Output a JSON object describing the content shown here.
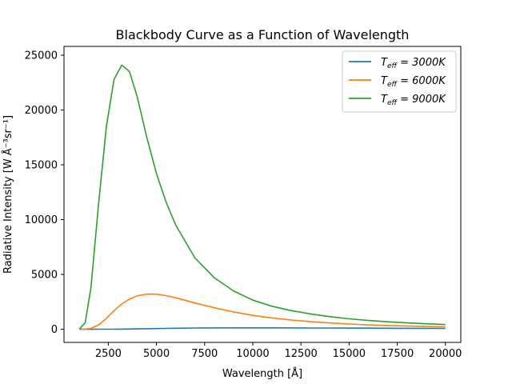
{
  "chart_data": {
    "type": "line",
    "title": "Blackbody Curve as a Function of Wavelength",
    "xlabel": "Wavelength [Å]",
    "ylabel": "Radiative Intensity [W Å⁻³sr⁻¹]",
    "xlim": [
      200,
      20800
    ],
    "ylim": [
      -1200,
      25800
    ],
    "xticks": [
      2500,
      5000,
      7500,
      10000,
      12500,
      15000,
      17500,
      20000
    ],
    "xtick_labels": [
      "2500",
      "5000",
      "7500",
      "10000",
      "12500",
      "15000",
      "17500",
      "20000"
    ],
    "yticks": [
      0,
      5000,
      10000,
      15000,
      20000,
      25000
    ],
    "ytick_labels": [
      "0",
      "5000",
      "10000",
      "15000",
      "20000",
      "25000"
    ],
    "grid": false,
    "legend": "top-right",
    "x": [
      1000,
      1300,
      1600,
      2000,
      2400,
      2800,
      3200,
      3600,
      4000,
      4500,
      5000,
      5500,
      6000,
      7000,
      8000,
      9000,
      10000,
      11000,
      12000,
      13000,
      14000,
      15000,
      16000,
      17000,
      18000,
      19000,
      20000
    ],
    "series": [
      {
        "name": "T",
        "name_sub": "eff",
        "name_rest": " = 3000K",
        "color": "#1f77b4",
        "values": [
          0,
          0,
          0,
          1,
          3,
          6,
          12,
          20,
          30,
          45,
          60,
          75,
          90,
          110,
          120,
          125,
          127,
          125,
          121,
          116,
          110,
          104,
          98,
          92,
          86,
          81,
          76
        ]
      },
      {
        "name": "T",
        "name_sub": "eff",
        "name_rest": " = 6000K",
        "color": "#ff7f0e",
        "values": [
          0,
          15,
          80,
          400,
          1000,
          1700,
          2300,
          2750,
          3050,
          3210,
          3200,
          3070,
          2870,
          2400,
          1960,
          1580,
          1270,
          1030,
          840,
          690,
          570,
          480,
          400,
          340,
          290,
          250,
          220
        ]
      },
      {
        "name": "T",
        "name_sub": "eff",
        "name_rest": " = 9000K",
        "color": "#2ca02c",
        "values": [
          20,
          600,
          3800,
          11500,
          18500,
          22800,
          24100,
          23500,
          21200,
          17500,
          14200,
          11600,
          9500,
          6500,
          4700,
          3500,
          2650,
          2100,
          1700,
          1400,
          1150,
          950,
          800,
          680,
          580,
          500,
          430
        ]
      }
    ]
  }
}
